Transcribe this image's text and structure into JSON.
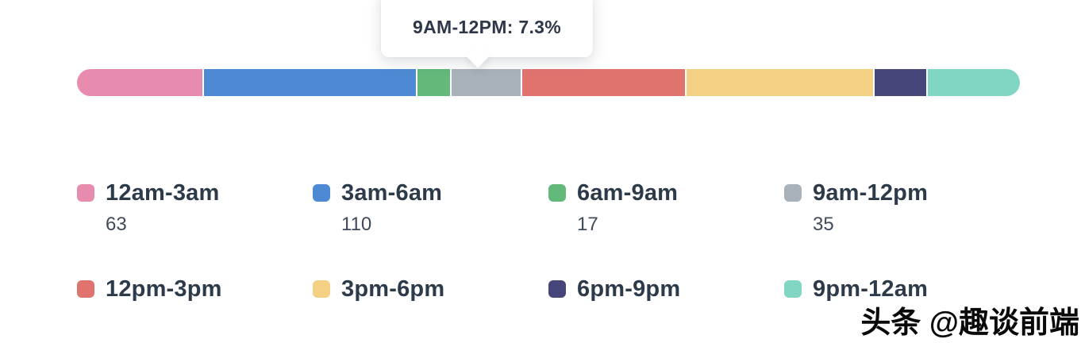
{
  "chart_data": {
    "type": "bar",
    "subtype": "horizontal-stacked-distribution",
    "title": "",
    "xlabel": "",
    "ylabel": "",
    "unit": "percent-of-total",
    "segments": [
      {
        "label": "12am-3am",
        "color": "#E88CAF",
        "percent": 13.3,
        "count": 63
      },
      {
        "label": "3am-6am",
        "color": "#4E8AD4",
        "percent": 22.5,
        "count": 110
      },
      {
        "label": "6am-9am",
        "color": "#62B97A",
        "percent": 3.5,
        "count": 17
      },
      {
        "label": "9am-12pm",
        "color": "#A9B1BA",
        "percent": 7.3,
        "count": 35
      },
      {
        "label": "12pm-3pm",
        "color": "#E1736F",
        "percent": 17.3,
        "count": null
      },
      {
        "label": "3pm-6pm",
        "color": "#F3D084",
        "percent": 19.8,
        "count": null
      },
      {
        "label": "6pm-9pm",
        "color": "#454579",
        "percent": 5.5,
        "count": null
      },
      {
        "label": "9pm-12am",
        "color": "#80D6C3",
        "percent": 9.8,
        "count": null
      }
    ],
    "tooltip": {
      "segment": "9am-12pm",
      "text": "9AM-12PM: 7.3%",
      "value_percent": 7.3
    },
    "legend_position": "bottom-grid-4-columns",
    "grid": false
  },
  "watermark": {
    "text": "头条 @趣谈前端"
  }
}
